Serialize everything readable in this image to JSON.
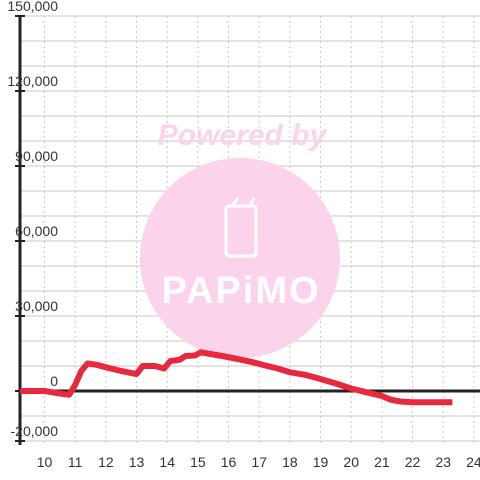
{
  "chart_data": {
    "type": "line",
    "title": "",
    "xlabel": "",
    "ylabel": "",
    "xlim": [
      9.2,
      24.2
    ],
    "ylim": [
      -20000,
      150000
    ],
    "grid": true,
    "legend": "none",
    "x_ticks": [
      10,
      11,
      12,
      13,
      14,
      15,
      16,
      17,
      18,
      19,
      20,
      21,
      22,
      23,
      24
    ],
    "x_tick_labels": [
      "10",
      "11",
      "12",
      "13",
      "14",
      "15",
      "16",
      "17",
      "18",
      "19",
      "20",
      "21",
      "22",
      "23",
      "24"
    ],
    "y_ticks": [
      -20000,
      0,
      30000,
      60000,
      90000,
      120000,
      150000
    ],
    "y_tick_labels": [
      "-20,000",
      "0",
      "30,000",
      "60,000",
      "90,000",
      "120,000",
      "150,000"
    ],
    "series": [
      {
        "color": "#e8283c",
        "x": [
          9.2,
          10.0,
          10.5,
          10.8,
          11.0,
          11.2,
          11.4,
          11.7,
          12.0,
          12.5,
          13.0,
          13.2,
          13.6,
          13.9,
          14.1,
          14.4,
          14.6,
          14.9,
          15.1,
          15.4,
          15.8,
          16.3,
          16.8,
          17.2,
          17.6,
          18.0,
          18.5,
          19.0,
          19.5,
          20.0,
          20.5,
          21.0,
          21.3,
          21.6,
          22.0,
          22.5,
          23.0,
          23.3
        ],
        "y": [
          0,
          0,
          -1000,
          -1500,
          2500,
          8000,
          11000,
          10500,
          9500,
          8000,
          6800,
          10000,
          10000,
          9000,
          12000,
          12500,
          14000,
          14200,
          15500,
          14800,
          14000,
          12800,
          11500,
          10200,
          9000,
          7500,
          6500,
          4800,
          3000,
          1000,
          -500,
          -2000,
          -3500,
          -4200,
          -4500,
          -4500,
          -4500,
          -4500
        ]
      }
    ]
  },
  "watermark": {
    "powered_by": "Powered by",
    "brand": "PAPiMO",
    "circle_color": "#fbd3ea",
    "text_color": "#fbd3ea"
  }
}
